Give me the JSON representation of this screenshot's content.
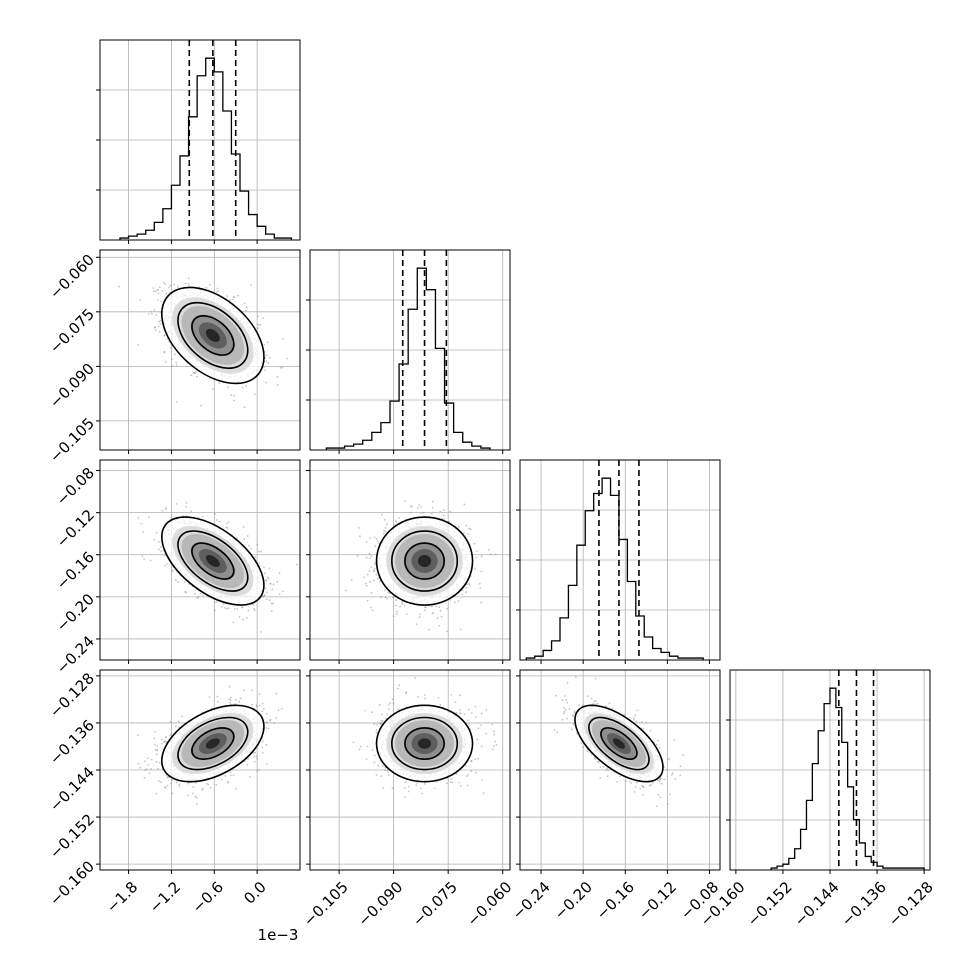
{
  "chart_data": {
    "type": "corner",
    "grid": true,
    "offset_text": "1e−3",
    "params": [
      {
        "range": [
          -2.2,
          0.6
        ],
        "median": -0.62,
        "q16": -0.95,
        "q84": -0.3,
        "ticks": [
          -1.8,
          -1.2,
          -0.6,
          0.0
        ],
        "tick_labels": [
          "−1.8",
          "−1.2",
          "−0.6",
          "0.0"
        ],
        "hist": {
          "bin_start": -1.92,
          "bin_width": 0.12,
          "counts": [
            1,
            2,
            3,
            5,
            9,
            16,
            28,
            43,
            63,
            84,
            93,
            86,
            66,
            44,
            25,
            13,
            7,
            3,
            1,
            1
          ]
        }
      },
      {
        "range": [
          -0.113,
          -0.058
        ],
        "median": -0.0815,
        "q16": -0.0875,
        "q84": -0.0755,
        "ticks": [
          -0.105,
          -0.09,
          -0.075,
          -0.06
        ],
        "tick_labels": [
          "−0.105",
          "−0.090",
          "−0.075",
          "−0.060"
        ],
        "hist": {
          "bin_start": -0.1085,
          "bin_width": 0.0025,
          "counts": [
            1,
            1,
            2,
            3,
            5,
            9,
            14,
            25,
            44,
            72,
            93,
            82,
            52,
            24,
            9,
            4,
            2,
            1
          ]
        }
      },
      {
        "range": [
          -0.26,
          -0.07
        ],
        "median": -0.166,
        "q16": -0.185,
        "q84": -0.147,
        "ticks": [
          -0.24,
          -0.2,
          -0.16,
          -0.12,
          -0.08
        ],
        "tick_labels": [
          "−0.24",
          "−0.20",
          "−0.16",
          "−0.12",
          "−0.08"
        ],
        "hist": {
          "bin_start": -0.254,
          "bin_width": 0.008,
          "counts": [
            1,
            2,
            5,
            10,
            22,
            39,
            60,
            78,
            87,
            95,
            86,
            63,
            41,
            23,
            12,
            6,
            4,
            2,
            1,
            1,
            1
          ]
        }
      },
      {
        "range": [
          -0.161,
          -0.127
        ],
        "median": -0.1395,
        "q16": -0.1425,
        "q84": -0.1366,
        "ticks": [
          -0.16,
          -0.152,
          -0.144,
          -0.136,
          -0.128
        ],
        "tick_labels": [
          "−0.160",
          "−0.152",
          "−0.144",
          "−0.136",
          "−0.128"
        ],
        "hist": {
          "bin_start": -0.154,
          "bin_width": 0.001,
          "counts": [
            1,
            2,
            3,
            6,
            11,
            21,
            36,
            55,
            72,
            86,
            94,
            84,
            66,
            43,
            26,
            14,
            7,
            4,
            2,
            1,
            1,
            1,
            1,
            1,
            1,
            1
          ]
        }
      }
    ],
    "pairs": [
      {
        "i": 1,
        "j": 0,
        "rho": -0.45
      },
      {
        "i": 2,
        "j": 0,
        "rho": -0.55
      },
      {
        "i": 2,
        "j": 1,
        "rho": 0.0
      },
      {
        "i": 3,
        "j": 0,
        "rho": 0.45
      },
      {
        "i": 3,
        "j": 1,
        "rho": 0.0
      },
      {
        "i": 3,
        "j": 2,
        "rho": -0.62
      }
    ],
    "colors": {
      "line": "#000000",
      "grid": "#b0b0b0",
      "scatter": "#808080",
      "frame": "#000000"
    }
  }
}
